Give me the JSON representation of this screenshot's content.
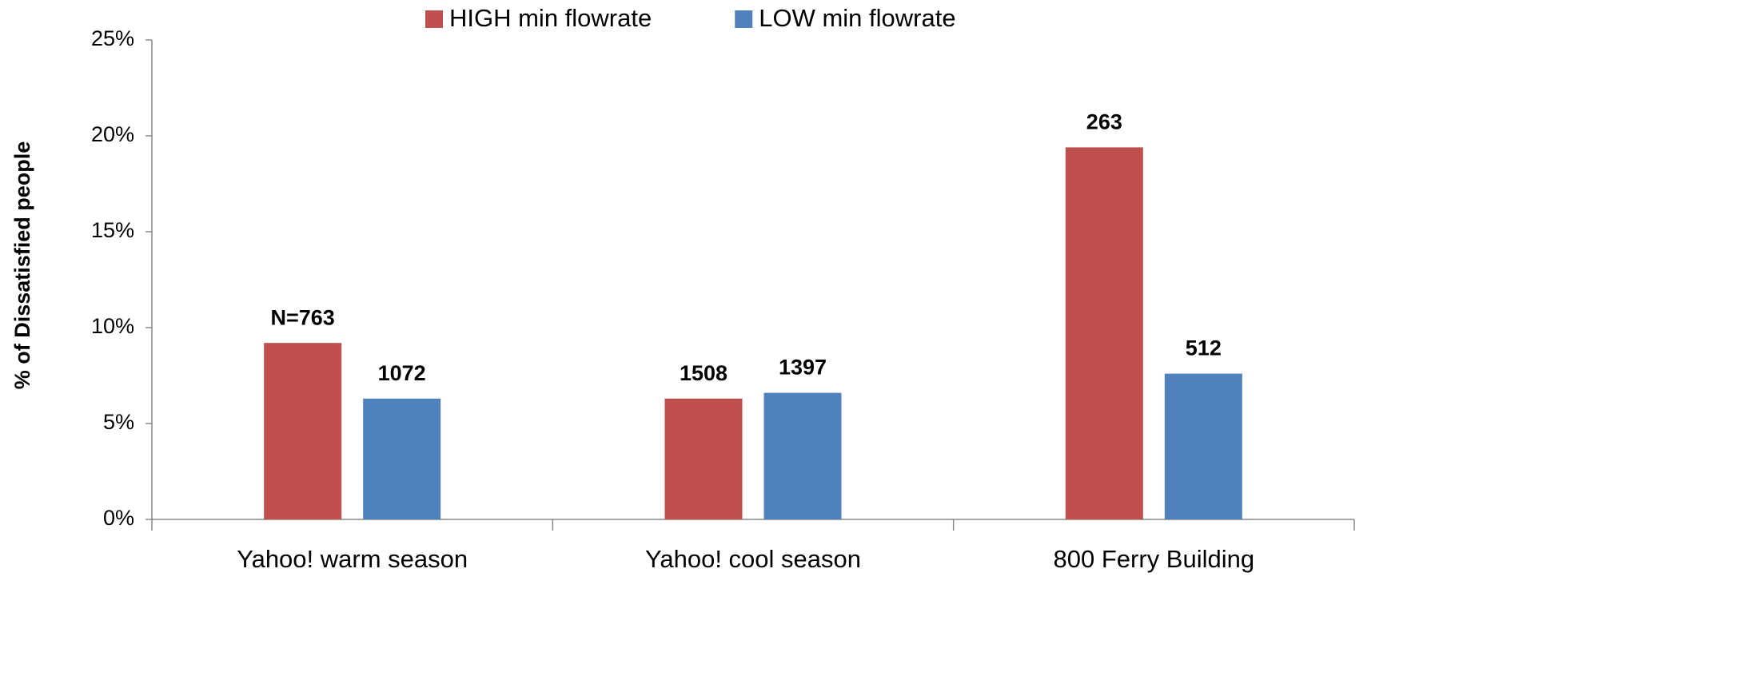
{
  "chart_data": {
    "type": "bar",
    "y_label": "% of Dissatisfied people",
    "categories": [
      "Yahoo! warm season",
      "Yahoo! cool season",
      "800 Ferry Building"
    ],
    "series": [
      {
        "name": "HIGH min flowrate",
        "color": "#c0504d",
        "values": [
          9.2,
          6.3,
          19.4
        ],
        "labels": [
          "N=763",
          "1508",
          "263"
        ]
      },
      {
        "name": "LOW min flowrate",
        "color": "#4f81bd",
        "values": [
          6.3,
          6.6,
          7.6
        ],
        "labels": [
          "1072",
          "1397",
          "512"
        ]
      }
    ],
    "ylim": [
      0,
      25
    ],
    "yticks": [
      {
        "value": 0,
        "label": "0%"
      },
      {
        "value": 5,
        "label": "5%"
      },
      {
        "value": 10,
        "label": "10%"
      },
      {
        "value": 15,
        "label": "15%"
      },
      {
        "value": 20,
        "label": "20%"
      },
      {
        "value": 25,
        "label": "25%"
      }
    ],
    "grid": false,
    "legend": "top"
  }
}
